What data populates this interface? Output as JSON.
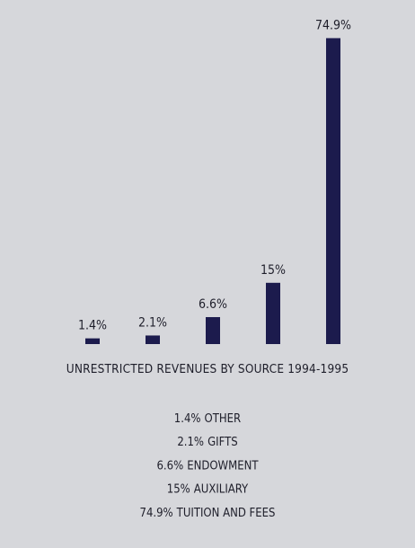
{
  "chart_data": {
    "type": "bar",
    "title": "UNRESTRICTED REVENUES BY SOURCE 1994-1995",
    "categories": [
      "OTHER",
      "GIFTS",
      "ENDOWMENT",
      "AUXILIARY",
      "TUITION AND FEES"
    ],
    "values": [
      1.4,
      2.1,
      6.6,
      15,
      74.9
    ],
    "value_labels": [
      "1.4%",
      "2.1%",
      "6.6%",
      "15%",
      "74.9%"
    ],
    "color": "#1c1b4d",
    "ylim": [
      0,
      75
    ]
  }
}
